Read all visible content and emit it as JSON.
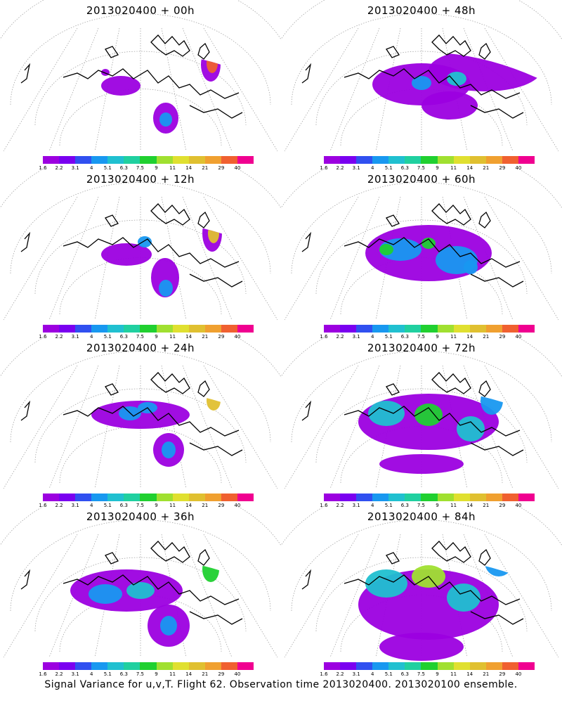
{
  "panels": [
    {
      "title": "2013020400 + 00h"
    },
    {
      "title": "2013020400 + 48h"
    },
    {
      "title": "2013020400 + 12h"
    },
    {
      "title": "2013020400 + 60h"
    },
    {
      "title": "2013020400 + 24h"
    },
    {
      "title": "2013020400 + 72h"
    },
    {
      "title": "2013020400 + 36h"
    },
    {
      "title": "2013020400 + 84h"
    }
  ],
  "colorbar": {
    "levels": [
      "1.6",
      "2.2",
      "3.1",
      "4",
      "5.1",
      "6.3",
      "7.5",
      "9",
      "11",
      "14",
      "21",
      "29",
      "40"
    ],
    "colors": [
      "#9c00e0",
      "#7a00f0",
      "#3050f0",
      "#1898f0",
      "#20c0d0",
      "#20d0a0",
      "#20d030",
      "#a0e030",
      "#e0e030",
      "#e0c030",
      "#f0a030",
      "#f06030",
      "#f00090"
    ]
  },
  "footer": "Signal Variance for u,v,T. Flight 62. Observation time 2013020400. 2013020100 ensemble."
}
